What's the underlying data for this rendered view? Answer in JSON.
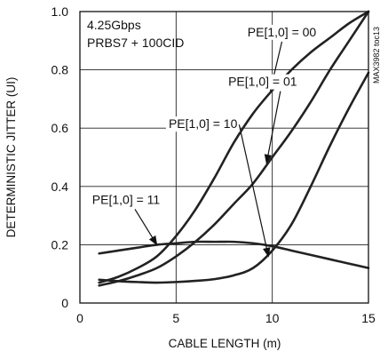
{
  "chart_data": {
    "type": "line",
    "xlabel": "CABLE LENGTH (m)",
    "ylabel": "DETERMINISTIC JITTER (UI)",
    "xlim": [
      0,
      15
    ],
    "ylim": [
      0,
      1.0
    ],
    "xticks": [
      0,
      5,
      10,
      15
    ],
    "yticks": [
      0,
      0.2,
      0.4,
      0.6,
      0.8,
      1.0
    ],
    "x_tick_labels": [
      "0",
      "5",
      "10",
      "15"
    ],
    "y_tick_labels": [
      "0",
      "0.2",
      "0.4",
      "0.6",
      "0.8",
      "1.0"
    ],
    "grid": true,
    "figure_code": "MAX3982 toc13",
    "test_conditions": [
      "4.25Gbps",
      "PRBS7 + 100CID"
    ],
    "series": [
      {
        "name": "PE[1,0] = 00",
        "x": [
          1,
          2,
          3,
          4,
          5,
          6,
          7,
          8,
          9,
          10,
          11,
          12,
          13,
          14,
          15
        ],
        "y": [
          0.07,
          0.09,
          0.12,
          0.16,
          0.23,
          0.32,
          0.43,
          0.55,
          0.65,
          0.73,
          0.8,
          0.86,
          0.91,
          0.96,
          1.0
        ]
      },
      {
        "name": "PE[1,0] = 01",
        "x": [
          1,
          2,
          3,
          4,
          5,
          6,
          7,
          8,
          9,
          10,
          11,
          12,
          13,
          14,
          15
        ],
        "y": [
          0.06,
          0.075,
          0.095,
          0.12,
          0.16,
          0.21,
          0.27,
          0.34,
          0.41,
          0.5,
          0.59,
          0.69,
          0.8,
          0.9,
          1.0
        ]
      },
      {
        "name": "PE[1,0] = 10",
        "x": [
          1,
          2,
          3,
          4,
          5,
          6,
          7,
          8,
          9,
          10,
          11,
          12,
          13,
          14,
          15
        ],
        "y": [
          0.08,
          0.075,
          0.072,
          0.07,
          0.072,
          0.076,
          0.082,
          0.095,
          0.12,
          0.18,
          0.27,
          0.4,
          0.54,
          0.67,
          0.79
        ]
      },
      {
        "name": "PE[1,0] = 11",
        "x": [
          1,
          2,
          3,
          4,
          5,
          6,
          7,
          8,
          9,
          10,
          11,
          12,
          13,
          14,
          15
        ],
        "y": [
          0.17,
          0.18,
          0.19,
          0.2,
          0.205,
          0.21,
          0.21,
          0.21,
          0.205,
          0.195,
          0.18,
          0.165,
          0.15,
          0.135,
          0.12
        ]
      }
    ],
    "annotations": [
      {
        "text": "PE[1,0] = 00",
        "label_x": 10.5,
        "label_y": 0.915,
        "arrow_to": [
          9.9,
          0.73
        ]
      },
      {
        "text": "PE[1,0] = 01",
        "label_x": 9.5,
        "label_y": 0.745,
        "arrow_to": [
          9.7,
          0.48
        ]
      },
      {
        "text": "PE[1,0] = 10",
        "label_x": 6.4,
        "label_y": 0.6,
        "arrow_to": [
          9.8,
          0.16
        ]
      },
      {
        "text": "PE[1,0] = 11",
        "label_x": 2.4,
        "label_y": 0.34,
        "arrow_to": [
          4.0,
          0.2
        ]
      }
    ]
  }
}
